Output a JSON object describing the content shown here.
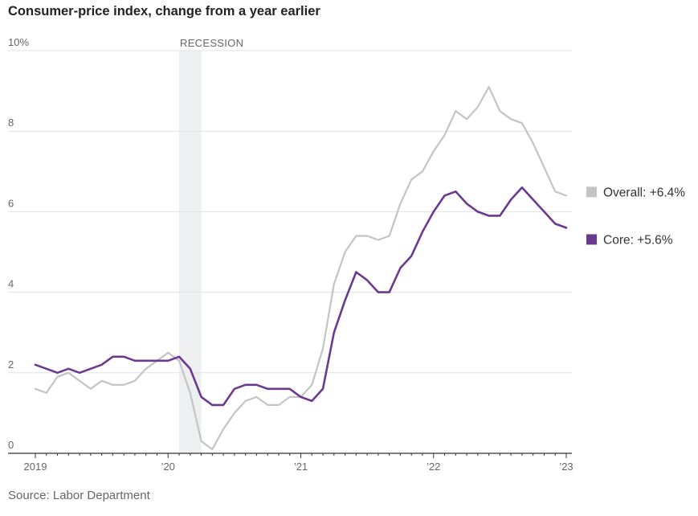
{
  "chart_data": {
    "type": "line",
    "title": "Consumer-price index, change from a year earlier",
    "source": "Source: Labor Department",
    "xlabel": "",
    "ylabel": "",
    "ylim": [
      0,
      10
    ],
    "yticks": [
      0,
      2,
      4,
      6,
      8,
      10
    ],
    "ytick_labels": [
      "0",
      "2",
      "4",
      "6",
      "8",
      "10%"
    ],
    "x_start": "2019-01",
    "x_end": "2023-01",
    "xtick_labels": [
      "2019",
      "’20",
      "’21",
      "’22",
      "’23"
    ],
    "recession": {
      "label": "RECESSION",
      "start": "2020-02",
      "end": "2020-04"
    },
    "grid": true,
    "legend": "right",
    "series": [
      {
        "name": "Overall",
        "legend_label": "Overall: +6.4%",
        "color": "#c4c4c4",
        "x": [
          "2019-01",
          "2019-02",
          "2019-03",
          "2019-04",
          "2019-05",
          "2019-06",
          "2019-07",
          "2019-08",
          "2019-09",
          "2019-10",
          "2019-11",
          "2019-12",
          "2020-01",
          "2020-02",
          "2020-03",
          "2020-04",
          "2020-05",
          "2020-06",
          "2020-07",
          "2020-08",
          "2020-09",
          "2020-10",
          "2020-11",
          "2020-12",
          "2021-01",
          "2021-02",
          "2021-03",
          "2021-04",
          "2021-05",
          "2021-06",
          "2021-07",
          "2021-08",
          "2021-09",
          "2021-10",
          "2021-11",
          "2021-12",
          "2022-01",
          "2022-02",
          "2022-03",
          "2022-04",
          "2022-05",
          "2022-06",
          "2022-07",
          "2022-08",
          "2022-09",
          "2022-10",
          "2022-11",
          "2022-12",
          "2023-01"
        ],
        "values": [
          1.6,
          1.5,
          1.9,
          2.0,
          1.8,
          1.6,
          1.8,
          1.7,
          1.7,
          1.8,
          2.1,
          2.3,
          2.5,
          2.3,
          1.5,
          0.3,
          0.1,
          0.6,
          1.0,
          1.3,
          1.4,
          1.2,
          1.2,
          1.4,
          1.4,
          1.7,
          2.6,
          4.2,
          5.0,
          5.4,
          5.4,
          5.3,
          5.4,
          6.2,
          6.8,
          7.0,
          7.5,
          7.9,
          8.5,
          8.3,
          8.6,
          9.1,
          8.5,
          8.3,
          8.2,
          7.7,
          7.1,
          6.5,
          6.4
        ]
      },
      {
        "name": "Core",
        "legend_label": "Core: +5.6%",
        "color": "#6b3a8e",
        "x": [
          "2019-01",
          "2019-02",
          "2019-03",
          "2019-04",
          "2019-05",
          "2019-06",
          "2019-07",
          "2019-08",
          "2019-09",
          "2019-10",
          "2019-11",
          "2019-12",
          "2020-01",
          "2020-02",
          "2020-03",
          "2020-04",
          "2020-05",
          "2020-06",
          "2020-07",
          "2020-08",
          "2020-09",
          "2020-10",
          "2020-11",
          "2020-12",
          "2021-01",
          "2021-02",
          "2021-03",
          "2021-04",
          "2021-05",
          "2021-06",
          "2021-07",
          "2021-08",
          "2021-09",
          "2021-10",
          "2021-11",
          "2021-12",
          "2022-01",
          "2022-02",
          "2022-03",
          "2022-04",
          "2022-05",
          "2022-06",
          "2022-07",
          "2022-08",
          "2022-09",
          "2022-10",
          "2022-11",
          "2022-12",
          "2023-01"
        ],
        "values": [
          2.2,
          2.1,
          2.0,
          2.1,
          2.0,
          2.1,
          2.2,
          2.4,
          2.4,
          2.3,
          2.3,
          2.3,
          2.3,
          2.4,
          2.1,
          1.4,
          1.2,
          1.2,
          1.6,
          1.7,
          1.7,
          1.6,
          1.6,
          1.6,
          1.4,
          1.3,
          1.6,
          3.0,
          3.8,
          4.5,
          4.3,
          4.0,
          4.0,
          4.6,
          4.9,
          5.5,
          6.0,
          6.4,
          6.5,
          6.2,
          6.0,
          5.9,
          5.9,
          6.3,
          6.6,
          6.3,
          6.0,
          5.7,
          5.6
        ]
      }
    ]
  }
}
